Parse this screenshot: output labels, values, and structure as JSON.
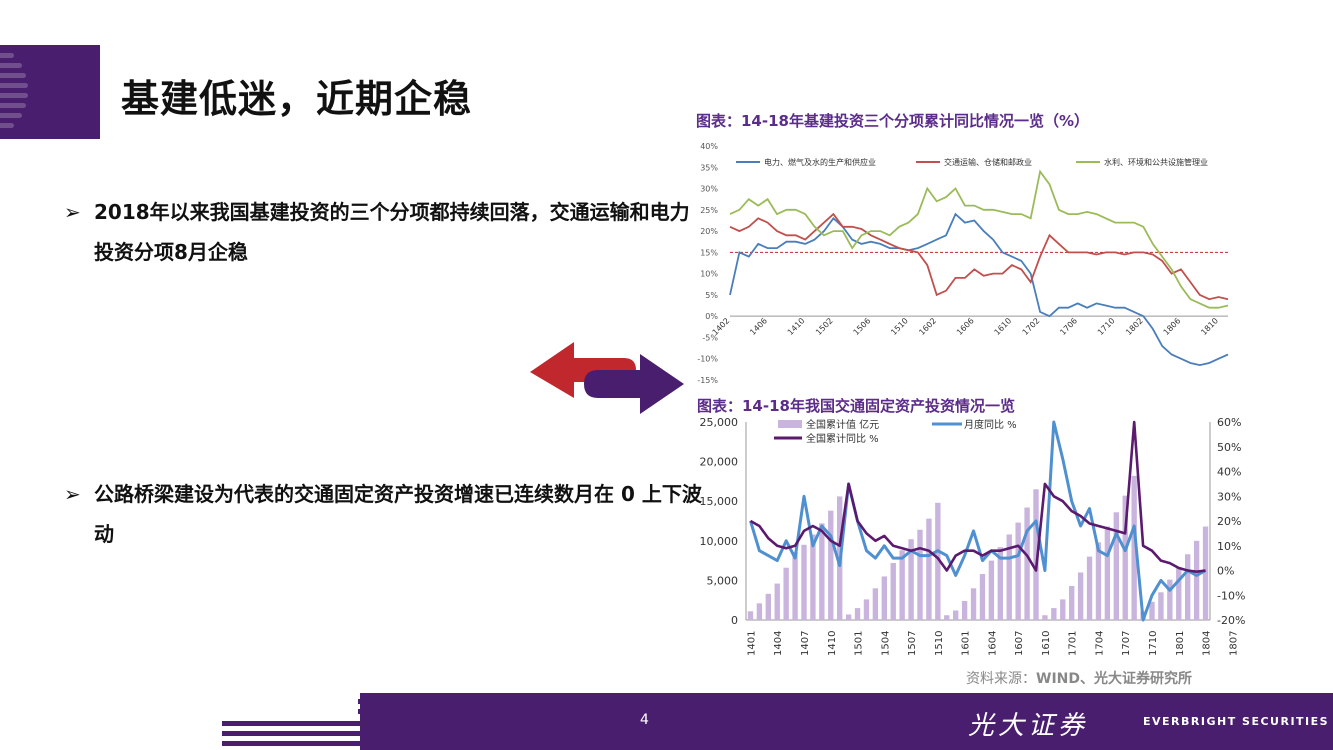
{
  "title": "基建低迷，近期企稳",
  "bullets": [
    {
      "mark": "➢",
      "text": "2018年以来我国基建投资的三个分项都持续回落，交通运输和电力投资分项8月企稳"
    },
    {
      "mark": "➢",
      "text": "公路桥梁建设为代表的交通固定资产投资增速已连续数月在 0 上下波动"
    }
  ],
  "chart1_title": "图表：14-18年基建投资三个分项累计同比情况一览（%）",
  "chart2_title": "图表：14-18年我国交通固定资产投资情况一览",
  "source": {
    "prefix": "资料来源：",
    "text": "WIND、光大证券研究所"
  },
  "page_number": "4",
  "brand": {
    "cn": "光大证券",
    "en": "EVERBRIGHT SECURITIES"
  },
  "colors": {
    "purple": "#4a1e6e",
    "blue": "#4a7ebb",
    "red": "#c0504d",
    "green": "#9bbb59",
    "bar": "#c8b4dc",
    "line_purple": "#5b1a6e",
    "line_blue": "#4f90d0"
  },
  "chart_data": [
    {
      "type": "line",
      "ylim": [
        -15,
        40
      ],
      "yticks": [
        "40%",
        "35%",
        "30%",
        "25%",
        "20%",
        "15%",
        "10%",
        "5%",
        "0%",
        "-5%",
        "-10%",
        "-15%"
      ],
      "x_tick_labels": [
        "1402",
        "1406",
        "1410",
        "1502",
        "1506",
        "1510",
        "1602",
        "1606",
        "1610",
        "1702",
        "1706",
        "1710",
        "1802",
        "1806",
        "1810"
      ],
      "x": [
        "1402",
        "1403",
        "1404",
        "1405",
        "1406",
        "1407",
        "1408",
        "1409",
        "1410",
        "1411",
        "1412",
        "1502",
        "1503",
        "1504",
        "1505",
        "1506",
        "1507",
        "1508",
        "1509",
        "1510",
        "1511",
        "1512",
        "1602",
        "1603",
        "1604",
        "1605",
        "1606",
        "1607",
        "1608",
        "1609",
        "1610",
        "1611",
        "1612",
        "1702",
        "1703",
        "1704",
        "1705",
        "1706",
        "1707",
        "1708",
        "1709",
        "1710",
        "1711",
        "1712",
        "1802",
        "1803",
        "1804",
        "1805",
        "1806",
        "1807",
        "1808",
        "1809",
        "1810",
        "1811"
      ],
      "reference_line": 15,
      "series": [
        {
          "name": "电力、燃气及水的生产和供应业",
          "color": "#4a7ebb",
          "values": [
            5,
            15,
            14,
            17,
            16,
            16,
            17.5,
            17.5,
            17,
            18,
            20,
            23,
            21,
            18,
            17,
            17.5,
            17,
            16,
            16,
            15.5,
            16,
            17,
            18,
            19,
            24,
            22,
            22.5,
            20,
            18,
            15,
            14,
            13,
            10,
            1,
            0,
            2,
            2,
            3,
            2,
            3,
            2.5,
            2,
            2,
            1,
            0,
            -3,
            -7,
            -9,
            -10,
            -11,
            -11.5,
            -11,
            -10,
            -9
          ]
        },
        {
          "name": "交通运输、仓储和邮政业",
          "color": "#c0504d",
          "values": [
            21,
            20,
            21,
            23,
            22,
            20,
            19,
            19,
            18,
            20,
            22,
            24,
            21,
            21,
            20.5,
            19,
            18,
            17,
            16,
            15.5,
            15,
            12,
            5,
            6,
            9,
            9,
            11,
            9.5,
            10,
            10,
            12,
            11,
            8,
            14,
            19,
            17,
            15,
            15,
            15,
            14.5,
            15,
            15,
            14.5,
            15,
            15,
            14.5,
            13,
            10,
            11,
            8,
            5,
            4,
            4.5,
            4
          ]
        },
        {
          "name": "水利、环境和公共设施管理业",
          "color": "#9bbb59",
          "values": [
            24,
            25,
            27.5,
            26,
            27.5,
            24,
            25,
            25,
            24,
            21,
            19,
            20,
            20,
            16,
            19,
            20,
            20,
            19,
            21,
            22,
            24,
            30,
            27,
            28,
            30,
            26,
            26,
            25,
            25,
            24.5,
            24,
            24,
            23,
            34,
            31,
            25,
            24,
            24,
            24.5,
            24,
            23,
            22,
            22,
            22,
            21,
            17,
            14,
            11,
            7,
            4,
            3,
            2,
            2,
            2.5
          ]
        }
      ]
    },
    {
      "type": "bar",
      "x_tick_labels": [
        "1401",
        "1404",
        "1407",
        "1410",
        "1501",
        "1504",
        "1507",
        "1510",
        "1601",
        "1604",
        "1607",
        "1610",
        "1701",
        "1704",
        "1707",
        "1710",
        "1801",
        "1804",
        "1807"
      ],
      "x": [
        "1402",
        "1403",
        "1404",
        "1405",
        "1406",
        "1407",
        "1408",
        "1409",
        "1410",
        "1411",
        "1412",
        "1502",
        "1503",
        "1504",
        "1505",
        "1506",
        "1507",
        "1508",
        "1509",
        "1510",
        "1511",
        "1512",
        "1602",
        "1603",
        "1604",
        "1605",
        "1606",
        "1607",
        "1608",
        "1609",
        "1610",
        "1611",
        "1612",
        "1702",
        "1703",
        "1704",
        "1705",
        "1706",
        "1707",
        "1708",
        "1709",
        "1710",
        "1711",
        "1712",
        "1802",
        "1803",
        "1804",
        "1805",
        "1806",
        "1807",
        "1808",
        "1809"
      ],
      "ylim_left": [
        0,
        25000
      ],
      "yticks_left": [
        "25,000",
        "20,000",
        "15,000",
        "10,000",
        "5,000",
        "0"
      ],
      "ylim_right": [
        -20,
        60
      ],
      "yticks_right": [
        "60%",
        "50%",
        "40%",
        "30%",
        "20%",
        "10%",
        "0%",
        "-10%",
        "-20%"
      ],
      "series": [
        {
          "name": "全国累计值 亿元",
          "type": "bar",
          "color": "#c8b4dc",
          "values": [
            1100,
            2100,
            3300,
            4600,
            6600,
            8600,
            9500,
            10800,
            12200,
            13800,
            15600,
            700,
            1500,
            2600,
            4000,
            5500,
            7200,
            8800,
            10200,
            11400,
            12800,
            14800,
            600,
            1200,
            2400,
            4000,
            5800,
            7500,
            9200,
            10800,
            12300,
            14200,
            16500,
            600,
            1500,
            2600,
            4300,
            6000,
            8000,
            9800,
            11800,
            13600,
            15700,
            18200,
            1100,
            2300,
            3500,
            5100,
            6700,
            8300,
            10000,
            11800
          ]
        },
        {
          "name": "月度同比 %",
          "type": "line",
          "axis": "right",
          "color": "#4f90d0",
          "values": [
            20,
            8,
            6,
            4,
            12,
            5,
            30,
            10,
            18,
            14,
            2,
            35,
            20,
            8,
            5,
            10,
            5,
            5,
            8,
            6,
            6,
            8,
            6,
            -2,
            6,
            16,
            4,
            8,
            5,
            5,
            6,
            16,
            20,
            0,
            60,
            45,
            28,
            18,
            25,
            8,
            6,
            15,
            8,
            18,
            -20,
            -10,
            -4,
            -8,
            -4,
            0,
            -2,
            0
          ]
        },
        {
          "name": "全国累计同比 %",
          "type": "line",
          "axis": "right",
          "color": "#5b1a6e",
          "values": [
            20,
            18,
            13,
            10,
            9,
            10,
            16,
            18,
            16,
            12,
            10,
            35,
            20,
            15,
            12,
            14,
            10,
            9,
            8,
            9,
            8,
            5,
            0,
            6,
            8,
            8,
            6,
            8,
            8,
            9,
            10,
            6,
            0,
            35,
            30,
            28,
            24,
            22,
            19,
            18,
            17,
            16,
            15,
            60,
            10,
            8,
            4,
            3,
            1,
            0,
            -0.5,
            0
          ]
        }
      ]
    }
  ]
}
